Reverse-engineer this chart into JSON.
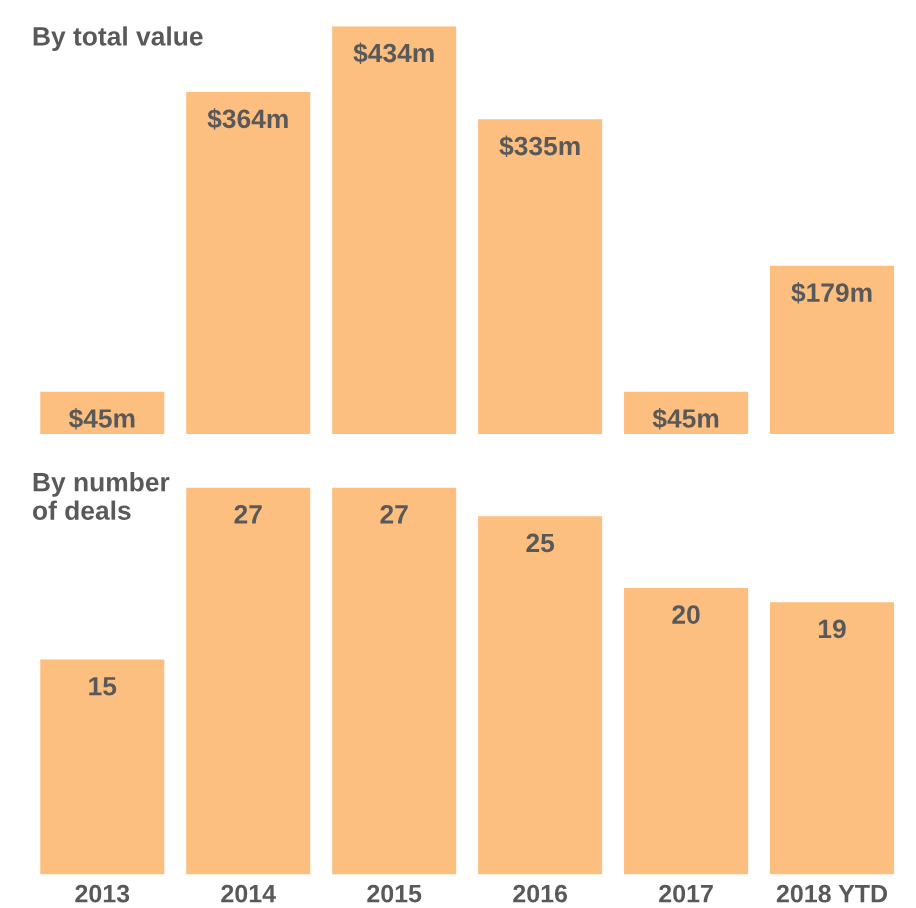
{
  "chart_data": [
    {
      "type": "bar",
      "title": "By total value",
      "categories": [
        null,
        null,
        null,
        null,
        null,
        null
      ],
      "values": [
        45,
        364,
        434,
        335,
        45,
        179
      ],
      "value_labels": [
        "$45m",
        "$364m",
        "$434m",
        "$335m",
        "$45m",
        "$179m"
      ],
      "color": "#fdbf7f",
      "tick_labels": false,
      "grid": false,
      "legend": false
    },
    {
      "type": "bar",
      "title": "By number\nof deals",
      "categories": [
        "2013",
        "2014",
        "2015",
        "2016",
        "2017",
        "2018 YTD"
      ],
      "values": [
        15,
        27,
        27,
        25,
        20,
        19
      ],
      "data_labels": true,
      "color": "#fdbf7f",
      "tick_labels": "x",
      "grid": false,
      "legend": false
    }
  ]
}
